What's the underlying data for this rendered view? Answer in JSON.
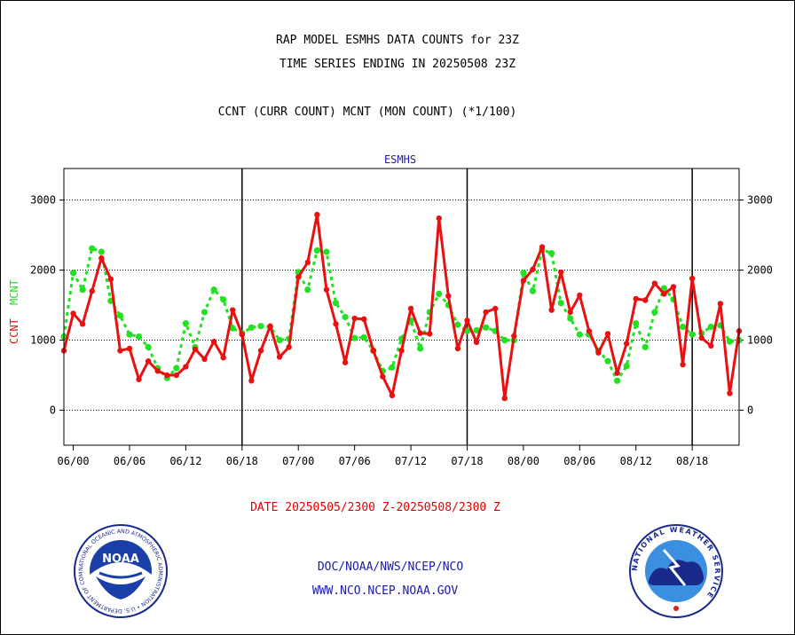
{
  "header": {
    "line1": "RAP MODEL ESMHS DATA COUNTS for 23Z",
    "line2": "TIME SERIES ENDING IN 20250508 23Z",
    "line3": "CCNT (CURR COUNT) MCNT (MON COUNT) (*1/100)"
  },
  "footer": {
    "date_range": "DATE 20250505/2300 Z-20250508/2300 Z",
    "link1": "DOC/NOAA/NWS/NCEP/NCO",
    "link2": "WWW.NCO.NCEP.NOAA.GOV"
  },
  "logos": {
    "noaa_text": "NOAA",
    "noaa_ring": "NATIONAL OCEANIC AND ATMOSPHERIC ADMINISTRATION • U.S. DEPARTMENT OF COMMERCE",
    "nws_ring": "NATIONAL WEATHER SERVICE"
  },
  "colors": {
    "ccnt": "#e81010",
    "mcnt": "#22e022",
    "title_blue": "#1a1ab0",
    "link_blue": "#1a1ab0"
  },
  "chart_data": {
    "type": "line",
    "title": "ESMHS",
    "ylabel_ccnt": "CCNT",
    "ylabel_mcnt": "MCNT",
    "ylim": [
      -500,
      3450
    ],
    "xlim": [
      -1,
      71
    ],
    "yticks": [
      0,
      1000,
      2000,
      3000
    ],
    "xticks": [
      {
        "x": 0,
        "label": "06/00"
      },
      {
        "x": 6,
        "label": "06/06"
      },
      {
        "x": 12,
        "label": "06/12"
      },
      {
        "x": 18,
        "label": "06/18"
      },
      {
        "x": 24,
        "label": "07/00"
      },
      {
        "x": 30,
        "label": "07/06"
      },
      {
        "x": 36,
        "label": "07/12"
      },
      {
        "x": 42,
        "label": "07/18"
      },
      {
        "x": 48,
        "label": "08/00"
      },
      {
        "x": 54,
        "label": "08/06"
      },
      {
        "x": 60,
        "label": "08/12"
      },
      {
        "x": 66,
        "label": "08/18"
      }
    ],
    "day_boundaries": [
      18,
      42,
      66
    ],
    "grid": true,
    "series": [
      {
        "name": "CCNT",
        "style": "solid",
        "x": [
          -1,
          0,
          1,
          2,
          3,
          4,
          5,
          6,
          7,
          8,
          9,
          10,
          11,
          12,
          13,
          14,
          15,
          16,
          17,
          18,
          19,
          20,
          21,
          22,
          23,
          24,
          25,
          26,
          27,
          28,
          29,
          30,
          31,
          32,
          33,
          34,
          35,
          36,
          37,
          38,
          39,
          40,
          41,
          42,
          43,
          44,
          45,
          46,
          47,
          48,
          49,
          50,
          51,
          52,
          53,
          54,
          55,
          56,
          57,
          58,
          59,
          60,
          61,
          62,
          63,
          64,
          65,
          66,
          67,
          68,
          69,
          70,
          71
        ],
        "values": [
          850,
          1380,
          1230,
          1700,
          2170,
          1870,
          850,
          880,
          440,
          700,
          560,
          500,
          500,
          620,
          870,
          730,
          980,
          750,
          1430,
          1080,
          420,
          850,
          1200,
          760,
          900,
          1900,
          2110,
          2790,
          1720,
          1230,
          680,
          1310,
          1300,
          850,
          480,
          210,
          850,
          1450,
          1100,
          1090,
          2740,
          1630,
          880,
          1280,
          970,
          1400,
          1450,
          170,
          1060,
          1850,
          2010,
          2330,
          1430,
          1970,
          1400,
          1640,
          1130,
          820,
          1090,
          530,
          950,
          1590,
          1570,
          1810,
          1660,
          1760,
          650,
          1880,
          1030,
          920,
          1520,
          240,
          1130
        ]
      },
      {
        "name": "MCNT",
        "style": "dotted",
        "x": [
          -1,
          0,
          1,
          2,
          3,
          4,
          5,
          6,
          7,
          8,
          9,
          10,
          11,
          12,
          13,
          14,
          15,
          16,
          17,
          18,
          19,
          20,
          21,
          22,
          23,
          24,
          25,
          26,
          27,
          28,
          29,
          30,
          31,
          32,
          33,
          34,
          35,
          36,
          37,
          38,
          39,
          40,
          41,
          42,
          43,
          44,
          45,
          46,
          47,
          48,
          49,
          50,
          51,
          52,
          53,
          54,
          55,
          56,
          57,
          58,
          59,
          60,
          61,
          62,
          63,
          64,
          65,
          66,
          67,
          68,
          69,
          70,
          71
        ],
        "values": [
          1050,
          1960,
          1720,
          2310,
          2260,
          1560,
          1350,
          1080,
          1050,
          900,
          600,
          460,
          600,
          1240,
          900,
          1400,
          1720,
          1580,
          1170,
          1100,
          1180,
          1200,
          1190,
          1000,
          1020,
          1970,
          1720,
          2280,
          2260,
          1530,
          1330,
          1030,
          1040,
          850,
          560,
          610,
          1020,
          1280,
          880,
          1400,
          1660,
          1500,
          1220,
          1130,
          1140,
          1180,
          1130,
          1000,
          1000,
          1960,
          1700,
          2290,
          2240,
          1530,
          1310,
          1080,
          1080,
          850,
          700,
          420,
          630,
          1240,
          900,
          1400,
          1740,
          1580,
          1190,
          1080,
          1100,
          1190,
          1210,
          980,
          1000
        ]
      }
    ]
  }
}
